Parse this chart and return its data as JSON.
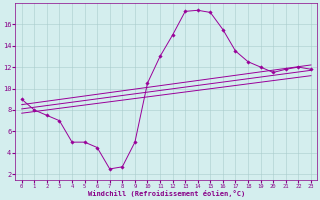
{
  "xlabel": "Windchill (Refroidissement éolien,°C)",
  "bg_color": "#d4eeee",
  "line_color": "#990099",
  "curve_x": [
    0,
    1,
    2,
    3,
    4,
    5,
    6,
    7,
    8,
    9,
    10,
    11,
    12,
    13,
    14,
    15,
    16,
    17,
    18,
    19,
    20,
    21,
    22,
    23
  ],
  "curve_y": [
    9.0,
    8.0,
    7.5,
    7.0,
    5.0,
    5.0,
    4.5,
    2.5,
    2.7,
    5.0,
    10.5,
    13.0,
    15.0,
    17.2,
    17.3,
    17.1,
    15.5,
    13.5,
    12.5,
    12.0,
    11.5,
    11.8,
    12.0,
    11.8
  ],
  "line1_x": [
    0,
    23
  ],
  "line1_y": [
    8.5,
    12.2
  ],
  "line2_x": [
    0,
    23
  ],
  "line2_y": [
    8.1,
    11.7
  ],
  "line3_x": [
    0,
    23
  ],
  "line3_y": [
    7.7,
    11.2
  ],
  "xlim": [
    -0.5,
    23.5
  ],
  "ylim": [
    1.5,
    18.0
  ],
  "yticks": [
    2,
    4,
    6,
    8,
    10,
    12,
    14,
    16
  ],
  "xticks": [
    0,
    1,
    2,
    3,
    4,
    5,
    6,
    7,
    8,
    9,
    10,
    11,
    12,
    13,
    14,
    15,
    16,
    17,
    18,
    19,
    20,
    21,
    22,
    23
  ]
}
